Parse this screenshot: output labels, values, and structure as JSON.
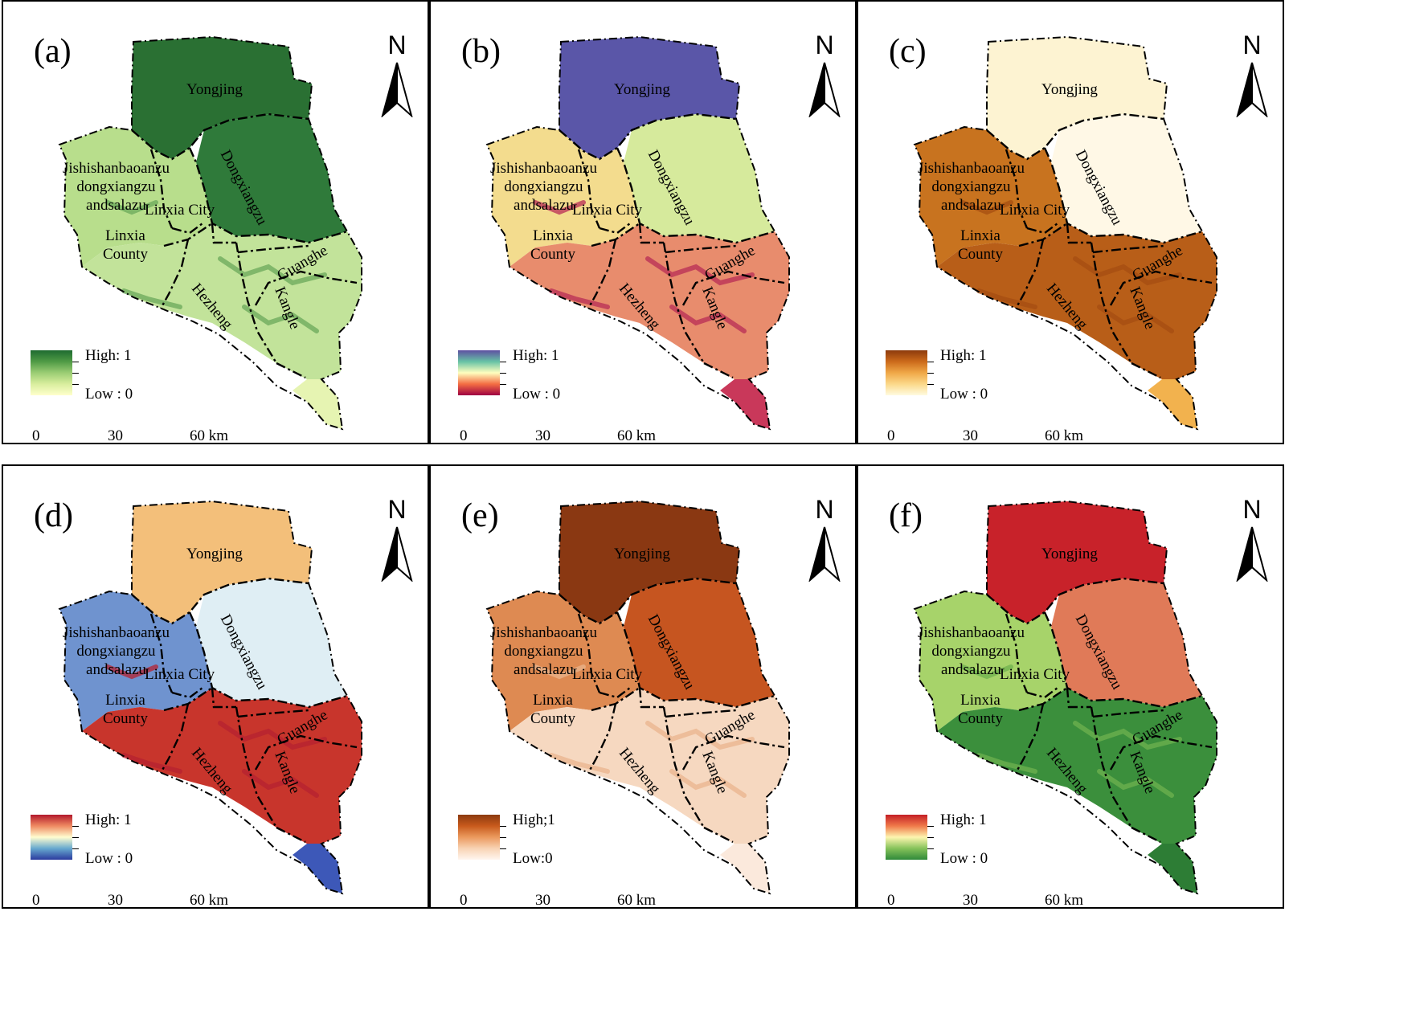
{
  "figure": {
    "panels": [
      {
        "id": "a",
        "label": "(a)",
        "north": "N",
        "legend": {
          "high": "High: 1",
          "low": "Low : 0",
          "colors": [
            "#1e6b30",
            "#4f9a45",
            "#9bcd74",
            "#d9ee9e",
            "#ffffcc"
          ]
        },
        "colors": {
          "north": "#2a7033",
          "dx": "#2f7a3a",
          "west": "#b8de8c",
          "south": "#c2e39a",
          "tail": "#e6f4b2",
          "stripe": "#6aa85a"
        },
        "regions": {
          "yongjing": "Yongjing",
          "dongxiangzu": "Dongxiangzu",
          "jishishan": [
            "Jishishanbaoanzu",
            "dongxiangzu",
            "andsalazu"
          ],
          "linxia_city": "Linxia City",
          "linxia_county": [
            "Linxia",
            "County"
          ],
          "guanghe": "Guanghe",
          "hezheng": "Hezheng",
          "kangle": "Kangle"
        },
        "scale": {
          "ticks": [
            "0",
            "30",
            "60 km"
          ]
        }
      },
      {
        "id": "b",
        "label": "(b)",
        "north": "N",
        "legend": {
          "high": "High: 1",
          "low": "Low : 0",
          "colors": [
            "#5e4fa2",
            "#66c2a5",
            "#ffffbf",
            "#f46d43",
            "#9e0142"
          ]
        },
        "colors": {
          "north": "#5a56a8",
          "dx": "#d6ea9c",
          "west": "#f3dc8e",
          "south": "#e88c6d",
          "tail": "#c9385a",
          "stripe": "#b82c55"
        },
        "regions": {
          "yongjing": "Yongjing",
          "dongxiangzu": "Dongxiangzu",
          "jishishan": [
            "Jishishanbaoanzu",
            "dongxiangzu",
            "andsalazu"
          ],
          "linxia_city": "Linxia City",
          "linxia_county": [
            "Linxia",
            "County"
          ],
          "guanghe": "Guanghe",
          "hezheng": "Hezheng",
          "kangle": "Kangle"
        },
        "scale": {
          "ticks": [
            "0",
            "30",
            "60 km"
          ]
        }
      },
      {
        "id": "c",
        "label": "(c)",
        "north": "N",
        "legend": {
          "high": "High: 1",
          "low": "Low : 0",
          "colors": [
            "#8c3a0c",
            "#cc6a1a",
            "#f0a848",
            "#fbd98a",
            "#fffbe0"
          ]
        },
        "colors": {
          "north": "#fdf3d2",
          "dx": "#fff8e6",
          "west": "#c8731f",
          "south": "#b85e18",
          "tail": "#f2b24e",
          "stripe": "#a54d12"
        },
        "regions": {
          "yongjing": "Yongjing",
          "dongxiangzu": "Dongxiangzu",
          "jishishan": [
            "Jishishanbaoanzu",
            "dongxiangzu",
            "andsalazu"
          ],
          "linxia_city": "Linxia City",
          "linxia_county": [
            "Linxia",
            "County"
          ],
          "guanghe": "Guanghe",
          "hezheng": "Hezheng",
          "kangle": "Kangle"
        },
        "scale": {
          "ticks": [
            "0",
            "30",
            "60 km"
          ]
        }
      },
      {
        "id": "d",
        "label": "(d)",
        "north": "N",
        "legend": {
          "high": "High: 1",
          "low": "Low : 0",
          "colors": [
            "#b2182b",
            "#ef8a62",
            "#fffdd0",
            "#67a9cf",
            "#2b3a9e"
          ]
        },
        "colors": {
          "north": "#f3bf7a",
          "dx": "#dfeef4",
          "west": "#6f93cf",
          "south": "#c8352c",
          "tail": "#3d58b8",
          "stripe": "#b52230"
        },
        "regions": {
          "yongjing": "Yongjing",
          "dongxiangzu": "Dongxiangzu",
          "jishishan": [
            "Jishishanbaoanzu",
            "dongxiangzu",
            "andsalazu"
          ],
          "linxia_city": "Linxia City",
          "linxia_county": [
            "Linxia",
            "County"
          ],
          "guanghe": "Guanghe",
          "hezheng": "Hezheng",
          "kangle": "Kangle"
        },
        "scale": {
          "ticks": [
            "0",
            "30",
            "60 km"
          ]
        }
      },
      {
        "id": "e",
        "label": "(e)",
        "north": "N",
        "legend": {
          "high": "High;1",
          "low": "Low:0",
          "colors": [
            "#8b3a0f",
            "#c85a1c",
            "#eb9a5e",
            "#f8d3b4",
            "#fff6ef"
          ]
        },
        "colors": {
          "north": "#8a3812",
          "dx": "#c65520",
          "west": "#de8a52",
          "south": "#f6d8c0",
          "tail": "#fbe9dc",
          "stripe": "#e9b48e"
        },
        "regions": {
          "yongjing": "Yongjing",
          "dongxiangzu": "Dongxiangzu",
          "jishishan": [
            "Jishishanbaoanzu",
            "dongxiangzu",
            "andsalazu"
          ],
          "linxia_city": "Linxia City",
          "linxia_county": [
            "Linxia",
            "County"
          ],
          "guanghe": "Guanghe",
          "hezheng": "Hezheng",
          "kangle": "Kangle"
        },
        "scale": {
          "ticks": [
            "0",
            "30",
            "60 km"
          ]
        }
      },
      {
        "id": "f",
        "label": "(f)",
        "north": "N",
        "legend": {
          "high": "High: 1",
          "low": "Low : 0",
          "colors": [
            "#c41f26",
            "#f07a4a",
            "#fdf5b0",
            "#86c25a",
            "#2f8a3a"
          ]
        },
        "colors": {
          "north": "#c8222a",
          "dx": "#e07a58",
          "west": "#a7d36a",
          "south": "#3b8f3c",
          "tail": "#2d7d35",
          "stripe": "#6fb24f"
        },
        "regions": {
          "yongjing": "Yongjing",
          "dongxiangzu": "Dongxiangzu",
          "jishishan": [
            "Jishishanbaoanzu",
            "dongxiangzu",
            "andsalazu"
          ],
          "linxia_city": "Linxia City",
          "linxia_county": [
            "Linxia",
            "County"
          ],
          "guanghe": "Guanghe",
          "hezheng": "Hezheng",
          "kangle": "Kangle"
        },
        "scale": {
          "ticks": [
            "0",
            "30",
            "60 km"
          ]
        }
      }
    ]
  }
}
